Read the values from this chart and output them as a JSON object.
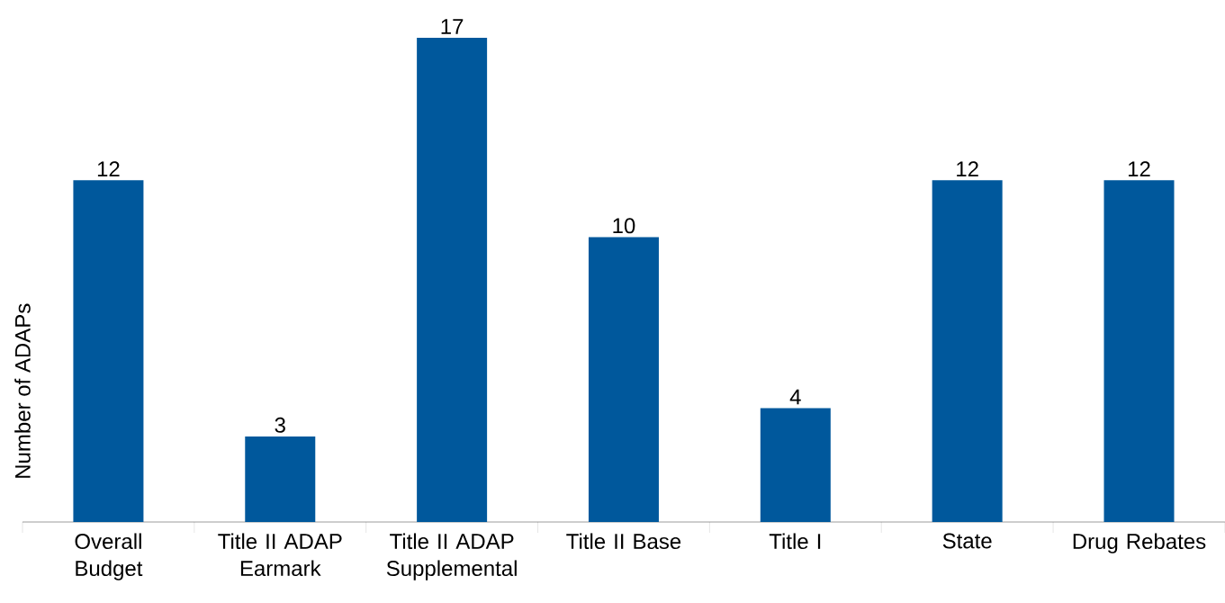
{
  "chart_data": {
    "type": "bar",
    "ylabel": "Number of ADAPs",
    "categories": [
      "Overall Budget",
      "Title II ADAP Earmark",
      "Title II ADAP Supplemental",
      "Title II Base",
      "Title I",
      "State",
      "Drug Rebates"
    ],
    "values": [
      12,
      3,
      17,
      10,
      4,
      12,
      12
    ],
    "color": "#00589c",
    "tick_labels": "x",
    "data_labels": true
  }
}
